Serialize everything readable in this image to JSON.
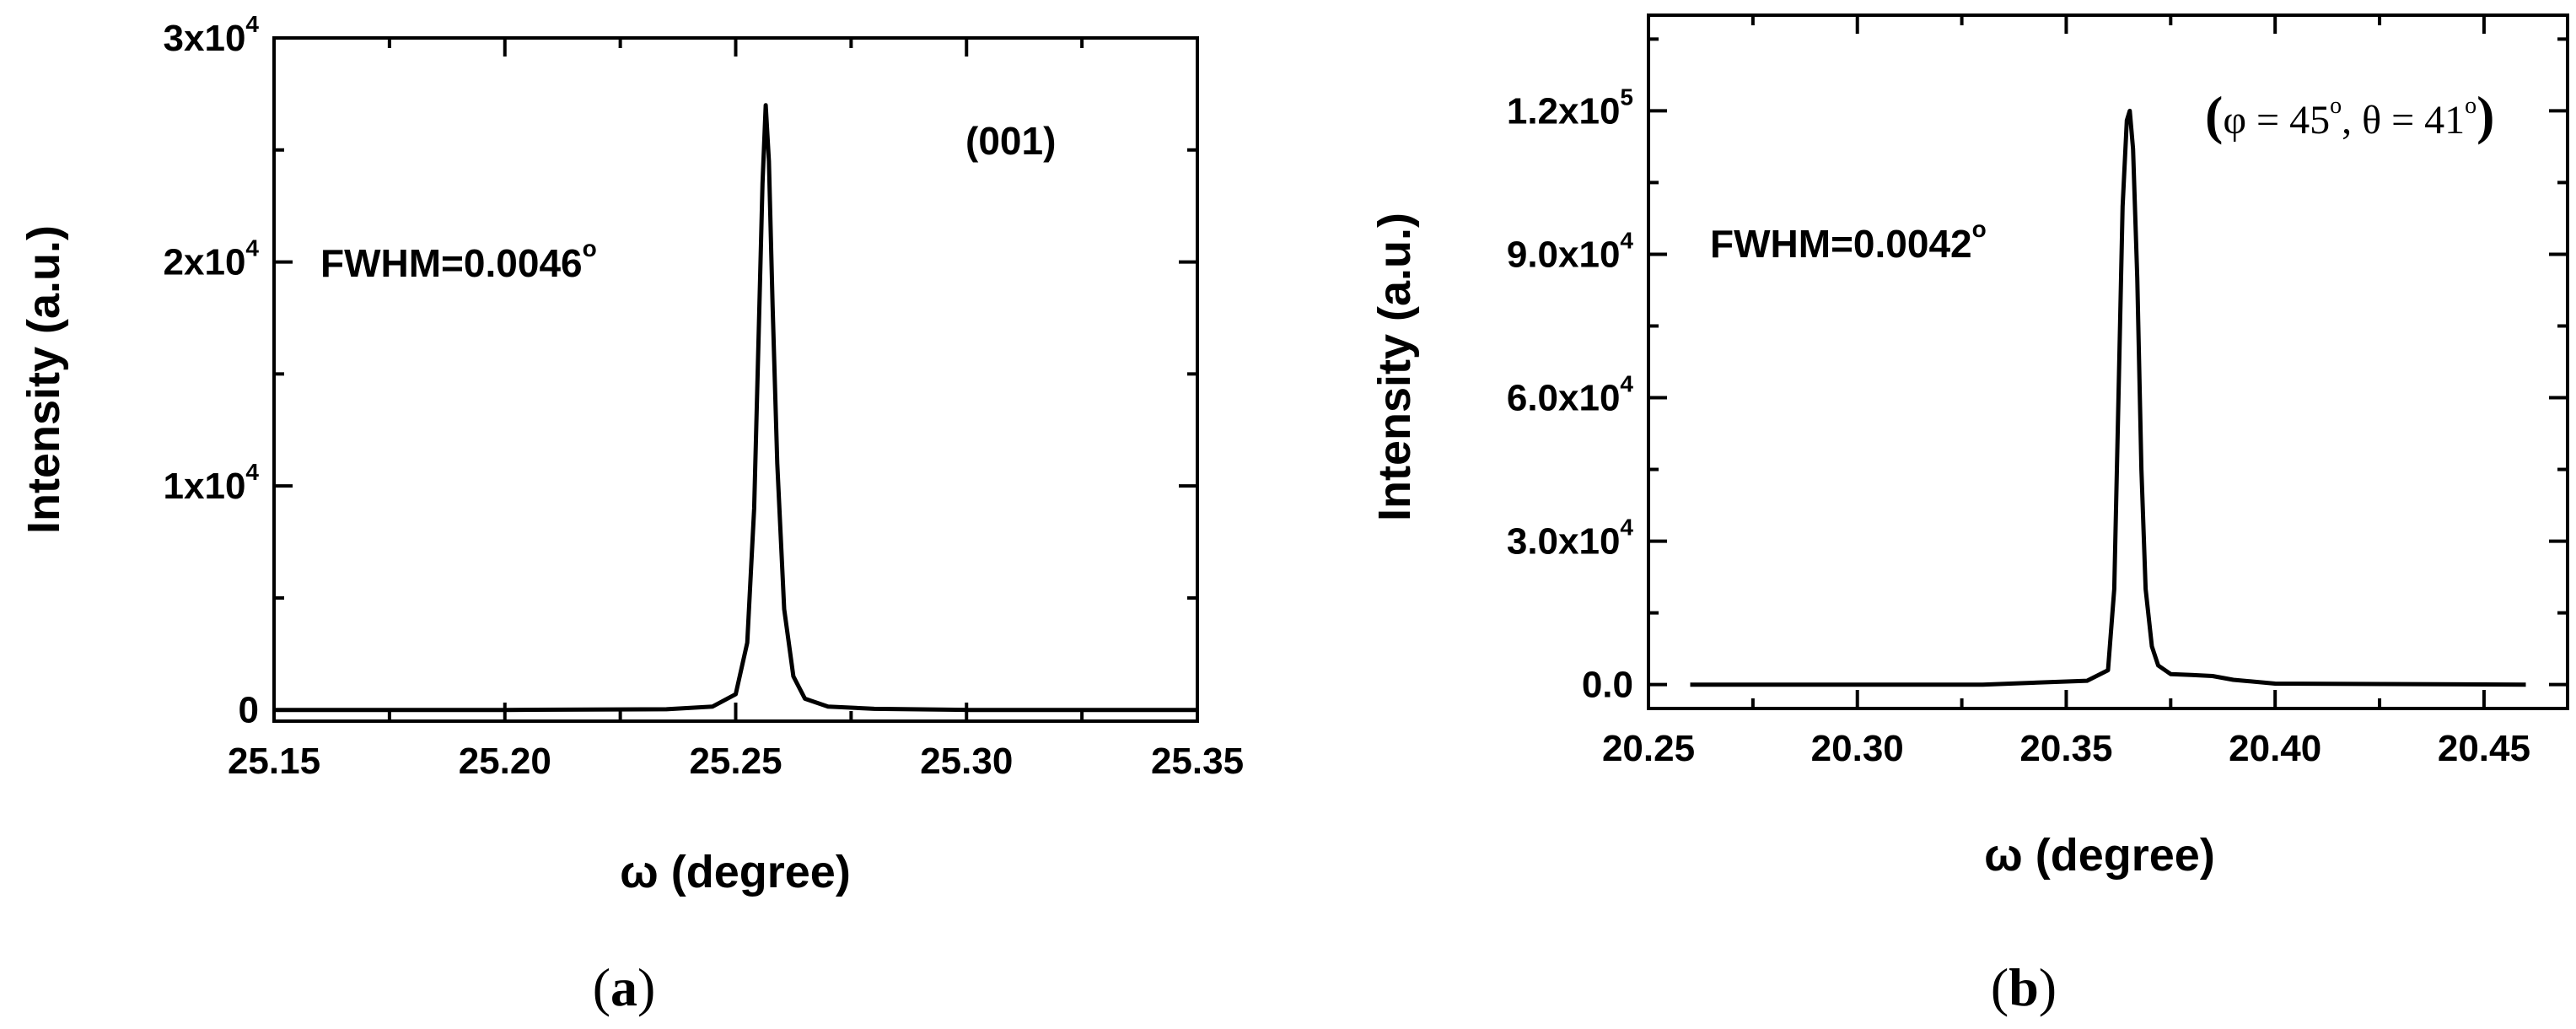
{
  "chart_data": [
    {
      "type": "line",
      "panel_label": "a",
      "title": "",
      "xlabel": "ω (degree)",
      "ylabel": "Intensity (a.u.)",
      "xlim": [
        25.15,
        25.35
      ],
      "ylim": [
        -500,
        30000
      ],
      "x_ticks": [
        25.15,
        25.2,
        25.25,
        25.3,
        25.35
      ],
      "x_tick_labels": [
        "25.15",
        "25.20",
        "25.25",
        "25.30",
        "25.35"
      ],
      "y_ticks": [
        {
          "value": 0,
          "mantissa": "0",
          "exp": ""
        },
        {
          "value": 10000,
          "mantissa": "1x10",
          "exp": "4"
        },
        {
          "value": 20000,
          "mantissa": "2x10",
          "exp": "4"
        },
        {
          "value": 30000,
          "mantissa": "3x10",
          "exp": "4"
        }
      ],
      "annotations": {
        "fwhm": {
          "text": "FWHM=0.0046",
          "deg": "o"
        },
        "reflection": "(001)"
      },
      "grid": false,
      "series": [
        {
          "x": [
            25.15,
            25.2,
            25.235,
            25.245,
            25.25,
            25.2525,
            25.254,
            25.255,
            25.2558,
            25.2565,
            25.2572,
            25.258,
            25.259,
            25.2605,
            25.2625,
            25.265,
            25.27,
            25.28,
            25.3,
            25.35
          ],
          "y": [
            0,
            0,
            30,
            150,
            700,
            3000,
            9000,
            17000,
            23500,
            27000,
            24500,
            18000,
            11000,
            4500,
            1500,
            500,
            150,
            50,
            0,
            0
          ]
        }
      ]
    },
    {
      "type": "line",
      "panel_label": "b",
      "title": "",
      "xlabel": "ω (degree)",
      "ylabel": "Intensity (a.u.)",
      "xlim": [
        20.25,
        20.47
      ],
      "ylim": [
        -5000,
        140000
      ],
      "x_ticks": [
        20.25,
        20.3,
        20.35,
        20.4,
        20.45
      ],
      "x_tick_labels": [
        "20.25",
        "20.30",
        "20.35",
        "20.40",
        "20.45"
      ],
      "y_ticks": [
        {
          "value": 0,
          "mantissa": "0.0",
          "exp": ""
        },
        {
          "value": 30000,
          "mantissa": "3.0x10",
          "exp": "4"
        },
        {
          "value": 60000,
          "mantissa": "6.0x10",
          "exp": "4"
        },
        {
          "value": 90000,
          "mantissa": "9.0x10",
          "exp": "4"
        },
        {
          "value": 120000,
          "mantissa": "1.2x10",
          "exp": "5"
        }
      ],
      "annotations": {
        "fwhm": {
          "text": "FWHM=0.0042",
          "deg": "o"
        },
        "angles": {
          "open": "(",
          "phi": "φ = 45",
          "sep": ", ",
          "theta": "θ = 41",
          "deg": "o",
          "close": ")"
        }
      },
      "grid": false,
      "series": [
        {
          "x": [
            20.26,
            20.33,
            20.355,
            20.36,
            20.3615,
            20.3625,
            20.3635,
            20.3645,
            20.3652,
            20.366,
            20.367,
            20.368,
            20.369,
            20.3705,
            20.372,
            20.375,
            20.38,
            20.385,
            20.39,
            20.4,
            20.46
          ],
          "y": [
            0,
            0,
            800,
            3000,
            20000,
            60000,
            100000,
            118000,
            120000,
            112000,
            85000,
            45000,
            20000,
            8000,
            4000,
            2200,
            2000,
            1800,
            1000,
            200,
            0
          ]
        }
      ]
    }
  ]
}
